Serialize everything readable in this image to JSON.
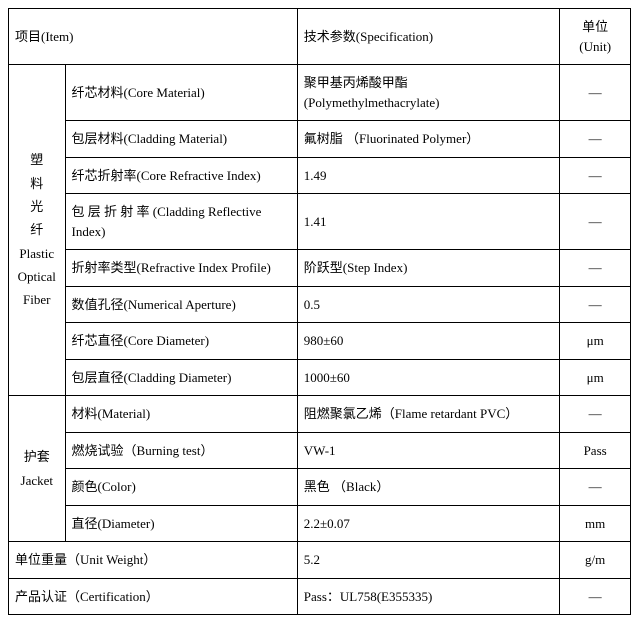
{
  "header": {
    "item": "项目(Item)",
    "spec": "技术参数(Specification)",
    "unit": "单位(Unit)"
  },
  "category": {
    "fiber": "塑\n料\n光\n纤\nPlastic Optical Fiber",
    "jacket": "护套\nJacket"
  },
  "fiber": {
    "core_material": {
      "item": "纤芯材料(Core Material)",
      "spec": "聚甲基丙烯酸甲酯\n(Polymethylmethacrylate)",
      "unit": "—"
    },
    "cladding_material": {
      "item": "包层材料(Cladding Material)",
      "spec": "氟树脂 （Fluorinated Polymer）",
      "unit": "—"
    },
    "core_refractive_index": {
      "item": "纤芯折射率(Core Refractive Index)",
      "spec": "1.49",
      "unit": "—"
    },
    "cladding_reflective_index": {
      "item": "包 层 折 射 率 (Cladding  Reflective Index)",
      "spec": "1.41",
      "unit": "—"
    },
    "refractive_profile": {
      "item": "折射率类型(Refractive Index Profile)",
      "spec": "阶跃型(Step Index)",
      "unit": "—"
    },
    "numerical_aperture": {
      "item": "数值孔径(Numerical Aperture)",
      "spec": "0.5",
      "unit": "—"
    },
    "core_diameter": {
      "item": "纤芯直径(Core Diameter)",
      "spec": "980±60",
      "unit": "μm"
    },
    "cladding_diameter": {
      "item": "包层直径(Cladding Diameter)",
      "spec": "1000±60",
      "unit": "μm"
    }
  },
  "jacket": {
    "material": {
      "item": "材料(Material)",
      "spec": "阻燃聚氯乙烯（Flame retardant PVC）",
      "unit": "—"
    },
    "burning_test": {
      "item": "燃烧试验（Burning test）",
      "spec": "VW-1",
      "unit": "Pass"
    },
    "color": {
      "item": "颜色(Color)",
      "spec": "黑色  （Black）",
      "unit": "—"
    },
    "diameter": {
      "item": "直径(Diameter)",
      "spec": "2.2±0.07",
      "unit": "mm"
    }
  },
  "unit_weight": {
    "item": "单位重量（Unit Weight）",
    "spec": "5.2",
    "unit": "g/m"
  },
  "certification": {
    "item": "产品认证（Certification）",
    "spec": "Pass：UL758(E355335)",
    "unit": "—"
  }
}
